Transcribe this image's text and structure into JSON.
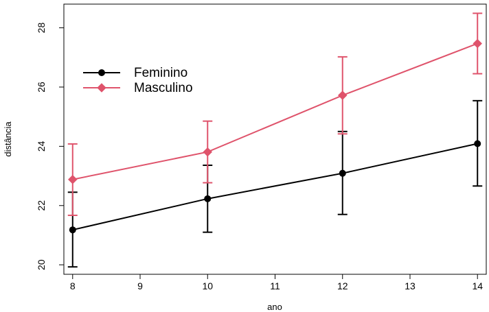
{
  "chart_data": {
    "type": "line",
    "title": "",
    "xlabel": "ano",
    "ylabel": "distância",
    "x": [
      8,
      10,
      12,
      14
    ],
    "xticks": [
      8,
      9,
      10,
      11,
      12,
      13,
      14
    ],
    "yticks": [
      20,
      22,
      24,
      26,
      28
    ],
    "xlim": [
      7.87,
      14.13
    ],
    "ylim": [
      19.68,
      28.8
    ],
    "grid": false,
    "legend_position": "top-left",
    "series": [
      {
        "name": "Feminino",
        "color": "#000000",
        "marker": "circle",
        "values": [
          21.18,
          22.23,
          23.09,
          24.09
        ],
        "error_low": [
          19.93,
          21.1,
          21.7,
          22.66
        ],
        "error_high": [
          22.45,
          23.36,
          24.5,
          25.54
        ]
      },
      {
        "name": "Masculino",
        "color": "#DF536B",
        "marker": "diamond",
        "values": [
          22.88,
          23.81,
          25.72,
          27.47
        ],
        "error_low": [
          21.67,
          22.77,
          24.42,
          26.45
        ],
        "error_high": [
          24.08,
          24.85,
          27.02,
          28.49
        ]
      }
    ]
  }
}
